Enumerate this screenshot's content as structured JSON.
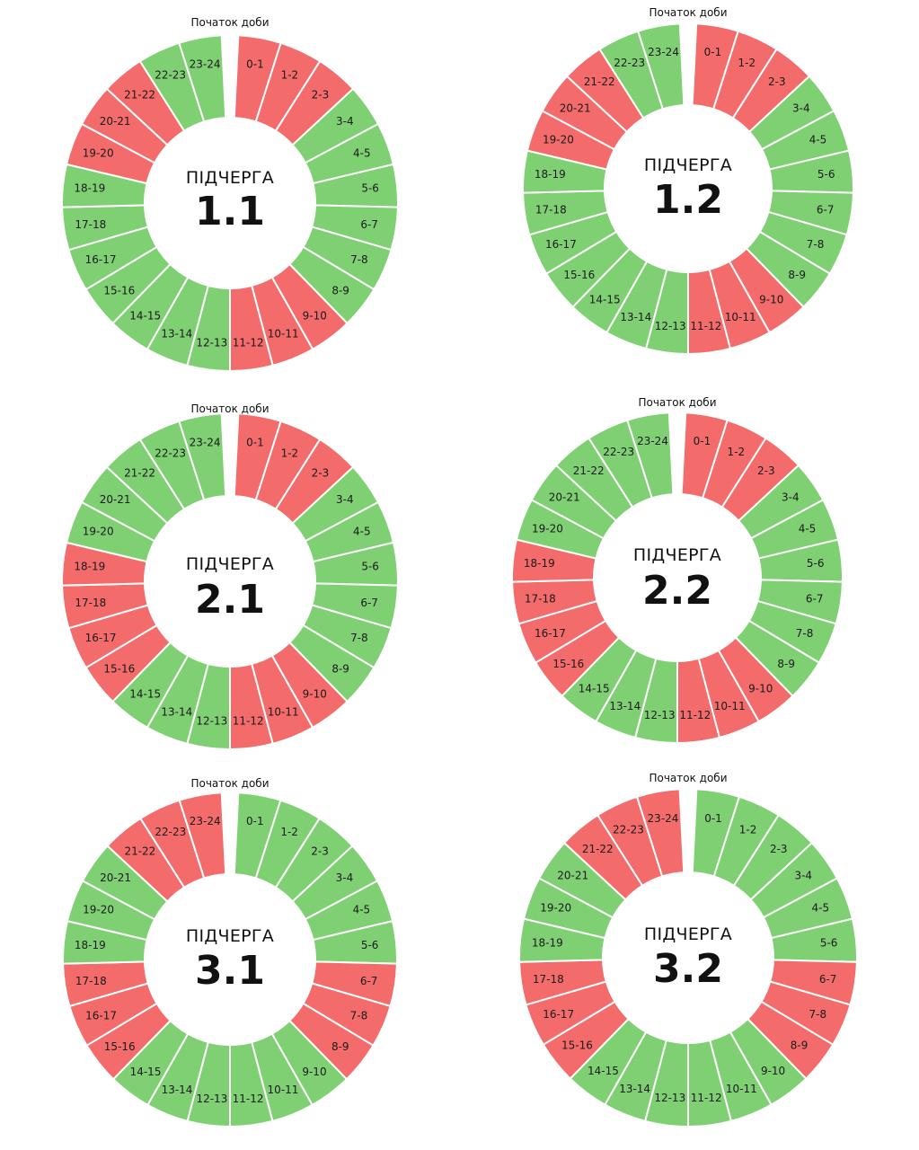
{
  "colors": {
    "on": "#7fcf73",
    "off": "#f46b6b"
  },
  "chart_data": [
    {
      "type": "pie",
      "start_label": "Початок доби",
      "center_word": "ПІДЧЕРГА",
      "center_number": "1.1",
      "categories": [
        "0-1",
        "1-2",
        "2-3",
        "3-4",
        "4-5",
        "5-6",
        "6-7",
        "7-8",
        "8-9",
        "9-10",
        "10-11",
        "11-12",
        "12-13",
        "13-14",
        "14-15",
        "15-16",
        "16-17",
        "17-18",
        "18-19",
        "19-20",
        "20-21",
        "21-22",
        "22-23",
        "23-24"
      ],
      "states": [
        "off",
        "off",
        "off",
        "on",
        "on",
        "on",
        "on",
        "on",
        "on",
        "off",
        "off",
        "off",
        "on",
        "on",
        "on",
        "on",
        "on",
        "on",
        "on",
        "off",
        "off",
        "off",
        "on",
        "on"
      ]
    },
    {
      "type": "pie",
      "start_label": "Початок доби",
      "center_word": "ПІДЧЕРГА",
      "center_number": "1.2",
      "categories": [
        "0-1",
        "1-2",
        "2-3",
        "3-4",
        "4-5",
        "5-6",
        "6-7",
        "7-8",
        "8-9",
        "9-10",
        "10-11",
        "11-12",
        "12-13",
        "13-14",
        "14-15",
        "15-16",
        "16-17",
        "17-18",
        "18-19",
        "19-20",
        "20-21",
        "21-22",
        "22-23",
        "23-24"
      ],
      "states": [
        "off",
        "off",
        "off",
        "on",
        "on",
        "on",
        "on",
        "on",
        "on",
        "off",
        "off",
        "off",
        "on",
        "on",
        "on",
        "on",
        "on",
        "on",
        "on",
        "off",
        "off",
        "off",
        "on",
        "on"
      ]
    },
    {
      "type": "pie",
      "start_label": "Початок доби",
      "center_word": "ПІДЧЕРГА",
      "center_number": "2.1",
      "categories": [
        "0-1",
        "1-2",
        "2-3",
        "3-4",
        "4-5",
        "5-6",
        "6-7",
        "7-8",
        "8-9",
        "9-10",
        "10-11",
        "11-12",
        "12-13",
        "13-14",
        "14-15",
        "15-16",
        "16-17",
        "17-18",
        "18-19",
        "19-20",
        "20-21",
        "21-22",
        "22-23",
        "23-24"
      ],
      "states": [
        "off",
        "off",
        "off",
        "on",
        "on",
        "on",
        "on",
        "on",
        "on",
        "off",
        "off",
        "off",
        "on",
        "on",
        "on",
        "off",
        "off",
        "off",
        "off",
        "on",
        "on",
        "on",
        "on",
        "on"
      ]
    },
    {
      "type": "pie",
      "start_label": "Початок доби",
      "center_word": "ПІДЧЕРГА",
      "center_number": "2.2",
      "categories": [
        "0-1",
        "1-2",
        "2-3",
        "3-4",
        "4-5",
        "5-6",
        "6-7",
        "7-8",
        "8-9",
        "9-10",
        "10-11",
        "11-12",
        "12-13",
        "13-14",
        "14-15",
        "15-16",
        "16-17",
        "17-18",
        "18-19",
        "19-20",
        "20-21",
        "21-22",
        "22-23",
        "23-24"
      ],
      "states": [
        "off",
        "off",
        "off",
        "on",
        "on",
        "on",
        "on",
        "on",
        "on",
        "off",
        "off",
        "off",
        "on",
        "on",
        "on",
        "off",
        "off",
        "off",
        "off",
        "on",
        "on",
        "on",
        "on",
        "on"
      ]
    },
    {
      "type": "pie",
      "start_label": "Початок доби",
      "center_word": "ПІДЧЕРГА",
      "center_number": "3.1",
      "categories": [
        "0-1",
        "1-2",
        "2-3",
        "3-4",
        "4-5",
        "5-6",
        "6-7",
        "7-8",
        "8-9",
        "9-10",
        "10-11",
        "11-12",
        "12-13",
        "13-14",
        "14-15",
        "15-16",
        "16-17",
        "17-18",
        "18-19",
        "19-20",
        "20-21",
        "21-22",
        "22-23",
        "23-24"
      ],
      "states": [
        "on",
        "on",
        "on",
        "on",
        "on",
        "on",
        "off",
        "off",
        "off",
        "on",
        "on",
        "on",
        "on",
        "on",
        "on",
        "off",
        "off",
        "off",
        "on",
        "on",
        "on",
        "off",
        "off",
        "off"
      ]
    },
    {
      "type": "pie",
      "start_label": "Початок доби",
      "center_word": "ПІДЧЕРГА",
      "center_number": "3.2",
      "categories": [
        "0-1",
        "1-2",
        "2-3",
        "3-4",
        "4-5",
        "5-6",
        "6-7",
        "7-8",
        "8-9",
        "9-10",
        "10-11",
        "11-12",
        "12-13",
        "13-14",
        "14-15",
        "15-16",
        "16-17",
        "17-18",
        "18-19",
        "19-20",
        "20-21",
        "21-22",
        "22-23",
        "23-24"
      ],
      "states": [
        "on",
        "on",
        "on",
        "on",
        "on",
        "on",
        "off",
        "off",
        "off",
        "on",
        "on",
        "on",
        "on",
        "on",
        "on",
        "off",
        "off",
        "off",
        "on",
        "on",
        "on",
        "off",
        "off",
        "off"
      ]
    }
  ]
}
